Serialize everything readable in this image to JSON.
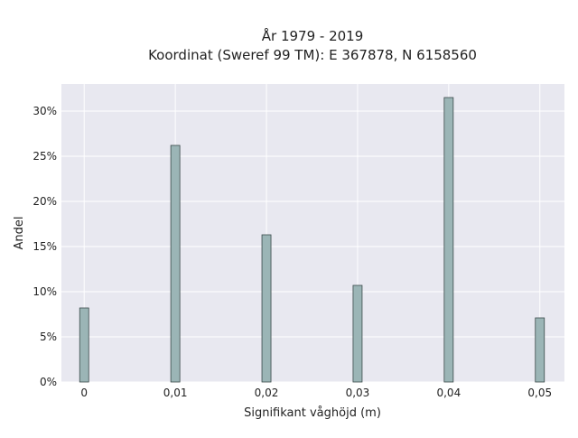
{
  "chart_data": {
    "type": "bar",
    "title_line1": "År 1979 - 2019",
    "title_line2": "Koordinat (Sweref 99 TM): E 367878, N 6158560",
    "xlabel": "Signifikant våghöjd (m)",
    "ylabel": "Andel",
    "x_ticks": [
      "0",
      "0,01",
      "0,02",
      "0,03",
      "0,04",
      "0,05"
    ],
    "y_ticks": [
      "0%",
      "5%",
      "10%",
      "15%",
      "20%",
      "25%",
      "30%"
    ],
    "x": [
      0,
      0.01,
      0.02,
      0.03,
      0.04,
      0.05
    ],
    "values": [
      8.2,
      26.2,
      16.3,
      10.7,
      31.5,
      7.1
    ],
    "xlim": [
      -0.0025,
      0.0527
    ],
    "ylim": [
      0,
      33
    ],
    "grid": true,
    "bar_color": "#9bb5b6",
    "bar_edge_color": "#3a4a4a",
    "plot_background": "#e8e8f0"
  }
}
